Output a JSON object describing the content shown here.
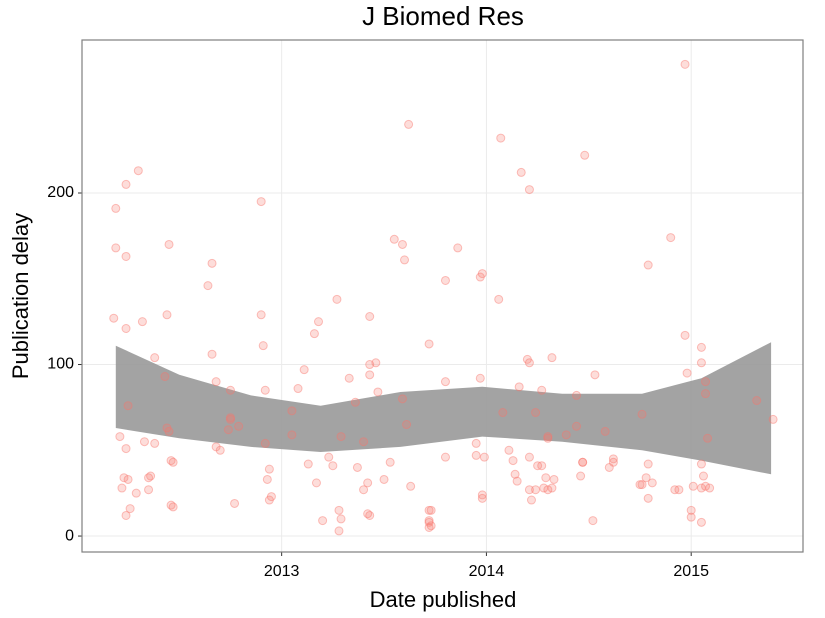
{
  "chart_data": {
    "type": "scatter",
    "title": "J Biomed Res",
    "x_label": "Date published",
    "y_label": "Publication delay",
    "xlim": [
      2012.025,
      2015.546
    ],
    "ylim": [
      -9.3,
      289.2
    ],
    "xticks": [
      2013,
      2014,
      2015
    ],
    "yticks": [
      0,
      100,
      200
    ],
    "grid": true,
    "color": "#f8766d",
    "x": [
      2012.19,
      2012.19,
      2012.18,
      2012.24,
      2012.24,
      2012.24,
      2012.25,
      2012.21,
      2012.22,
      2012.23,
      2012.24,
      2012.25,
      2012.26,
      2012.24,
      2012.3,
      2012.32,
      2012.29,
      2012.33,
      2012.35,
      2012.35,
      2012.36,
      2012.38,
      2012.38,
      2012.43,
      2012.45,
      2012.44,
      2012.44,
      2012.45,
      2012.46,
      2012.47,
      2012.46,
      2012.47,
      2012.64,
      2012.66,
      2012.66,
      2012.68,
      2012.68,
      2012.7,
      2012.75,
      2012.74,
      2012.75,
      2012.77,
      2012.75,
      2012.79,
      2012.9,
      2012.9,
      2012.91,
      2012.92,
      2012.94,
      2012.92,
      2012.93,
      2012.94,
      2012.95,
      2013.05,
      2013.05,
      2013.08,
      2013.11,
      2013.13,
      2013.16,
      2013.18,
      2013.2,
      2013.17,
      2013.23,
      2013.25,
      2013.27,
      2013.29,
      2013.28,
      2013.29,
      2013.28,
      2013.33,
      2013.36,
      2013.37,
      2013.4,
      2013.42,
      2013.4,
      2013.43,
      2013.43,
      2013.43,
      2013.42,
      2013.43,
      2013.46,
      2013.47,
      2013.5,
      2013.53,
      2013.55,
      2013.59,
      2013.6,
      2013.59,
      2013.63,
      2013.61,
      2013.72,
      2013.72,
      2013.73,
      2013.72,
      2013.72,
      2013.73,
      2013.72,
      2013.62,
      2013.8,
      2013.8,
      2013.8,
      2013.86,
      2013.95,
      2013.95,
      2013.97,
      2013.98,
      2013.97,
      2013.99,
      2013.98,
      2013.98,
      2014.07,
      2014.06,
      2014.08,
      2014.11,
      2014.13,
      2014.14,
      2014.15,
      2014.16,
      2014.17,
      2014.21,
      2014.2,
      2014.21,
      2014.21,
      2014.21,
      2014.22,
      2014.24,
      2014.24,
      2014.25,
      2014.27,
      2014.27,
      2014.28,
      2014.29,
      2014.3,
      2014.3,
      2014.3,
      2014.32,
      2014.33,
      2014.32,
      2014.39,
      2014.44,
      2014.46,
      2014.44,
      2014.47,
      2014.47,
      2014.48,
      2014.52,
      2014.53,
      2014.58,
      2014.6,
      2014.62,
      2014.62,
      2014.76,
      2014.75,
      2014.76,
      2014.78,
      2014.79,
      2014.79,
      2014.79,
      2014.81,
      2014.9,
      2014.92,
      2014.94,
      2014.97,
      2014.97,
      2014.98,
      2015.0,
      2015.0,
      2015.01,
      2015.05,
      2015.05,
      2015.05,
      2015.07,
      2015.05,
      2015.05,
      2015.07,
      2015.07,
      2015.08,
      2015.06,
      2015.09,
      2015.32,
      2015.4
    ],
    "values": [
      191,
      168,
      127,
      205,
      163,
      121,
      76,
      58,
      28,
      34,
      51,
      33,
      16,
      12,
      213,
      125,
      25,
      55,
      34,
      27,
      35,
      104,
      54,
      93,
      170,
      129,
      63,
      61,
      44,
      43,
      18,
      17,
      146,
      106,
      159,
      90,
      52,
      50,
      85,
      62,
      69,
      19,
      68,
      64,
      195,
      129,
      111,
      54,
      39,
      85,
      33,
      21,
      23,
      73,
      59,
      86,
      97,
      42,
      118,
      125,
      9,
      31,
      46,
      41,
      138,
      58,
      15,
      10,
      3,
      92,
      78,
      40,
      27,
      31,
      55,
      100,
      94,
      128,
      13,
      12,
      101,
      84,
      33,
      43,
      173,
      170,
      161,
      80,
      29,
      65,
      112,
      15,
      15,
      9,
      8,
      6,
      5,
      240,
      149,
      90,
      46,
      168,
      54,
      47,
      151,
      153,
      92,
      46,
      24,
      22,
      232,
      138,
      72,
      50,
      44,
      36,
      32,
      87,
      212,
      202,
      103,
      101,
      46,
      27,
      21,
      27,
      72,
      41,
      85,
      41,
      28,
      34,
      27,
      58,
      57,
      104,
      33,
      28,
      59,
      82,
      35,
      64,
      43,
      43,
      222,
      9,
      94,
      61,
      40,
      45,
      43,
      30,
      30,
      71,
      34,
      158,
      22,
      42,
      31,
      174,
      27,
      27,
      117,
      275,
      95,
      15,
      11,
      29,
      28,
      8,
      42,
      29,
      110,
      101,
      90,
      83,
      57,
      35,
      28,
      79,
      68
    ],
    "band": {
      "color": "#999999",
      "x": [
        2012.19,
        2012.5,
        2012.85,
        2013.19,
        2013.58,
        2013.98,
        2014.37,
        2014.76,
        2015.05,
        2015.39
      ],
      "upper": [
        111,
        94,
        82,
        76,
        84,
        87,
        83,
        83,
        92,
        113
      ],
      "lower": [
        63,
        57,
        52,
        49,
        52,
        58,
        55,
        50,
        44,
        36
      ]
    }
  }
}
